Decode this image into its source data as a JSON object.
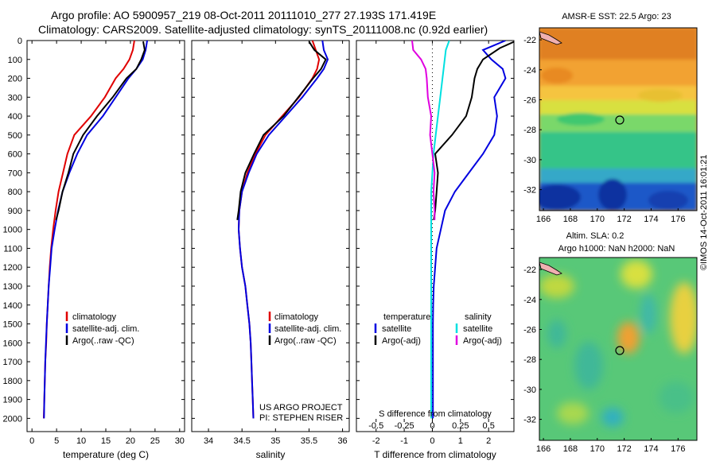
{
  "header": {
    "line1": "Argo profile: AO 5900957_219 08-Oct-2011 20111010_277 27.193S 171.419E",
    "line2": "Climatology: CARS2009. Satellite-adjusted climatology: synTS_20111008.nc (0.92d earlier)"
  },
  "depth_ticks": [
    "0",
    "100",
    "200",
    "300",
    "400",
    "500",
    "600",
    "700",
    "800",
    "900",
    "1000",
    "1100",
    "1200",
    "1300",
    "1400",
    "1500",
    "1600",
    "1700",
    "1800",
    "1900",
    "2000"
  ],
  "panels": {
    "temperature": {
      "xlabel": "temperature (deg C)",
      "xticks": [
        "0",
        "5",
        "10",
        "15",
        "20",
        "25",
        "30"
      ],
      "legend": [
        "climatology",
        "satellite-adj. clim.",
        "Argo(..raw -QC)"
      ]
    },
    "salinity": {
      "xlabel": "salinity",
      "xticks": [
        "34",
        "34.5",
        "35",
        "35.5",
        "36"
      ],
      "legend": [
        "climatology",
        "satellite-adj. clim.",
        "Argo(..raw -QC)"
      ],
      "credit1": "US ARGO PROJECT",
      "credit2": "PI: STEPHEN RISER"
    },
    "difference": {
      "xlabel": "T difference from climatology",
      "top_label": "S difference from climatology",
      "xticks_t": [
        "-2",
        "-1",
        "0",
        "1",
        "2"
      ],
      "xticks_s": [
        "-0.5",
        "-0.25",
        "0",
        "0.25",
        "0.5"
      ],
      "legend_t_title": "temperature",
      "legend_s_title": "salinity",
      "legend_t": [
        "satellite",
        "Argo(-adj)"
      ],
      "legend_s": [
        "satellite",
        "Argo(-adj)"
      ]
    }
  },
  "maps": {
    "sst_title": "AMSR-E SST: 22.5  Argo: 23",
    "sla_title1": "Altim. SLA: 0.2",
    "sla_title2": "Argo h1000: NaN h2000: NaN",
    "lon_ticks": [
      "166",
      "168",
      "170",
      "172",
      "174",
      "176"
    ],
    "lat_ticks": [
      "-22",
      "-24",
      "-26",
      "-28",
      "-30",
      "-32"
    ]
  },
  "footer": "©IMOS 14-Oct-2011 16:01:21",
  "colors": {
    "climatology": "#e00000",
    "satellite": "#0000e0",
    "argo": "#000000",
    "cyan": "#00e0e0",
    "magenta": "#e000e0"
  },
  "chart_data": [
    {
      "type": "line",
      "xlabel": "temperature (deg C)",
      "ylabel": "depth",
      "xlim": [
        -1,
        31
      ],
      "ylim": [
        2070,
        0
      ],
      "y_reversed": true,
      "series": [
        {
          "name": "climatology",
          "color": "#e00000",
          "x": [
            20.8,
            20.5,
            19.8,
            18.6,
            17.0,
            14.8,
            12.0,
            8.6,
            7.2,
            6.3,
            5.4,
            4.8,
            4.3,
            3.9,
            3.6,
            3.4,
            3.2,
            3.0,
            2.9,
            2.7,
            2.6,
            2.5,
            2.4
          ],
          "y": [
            0,
            50,
            100,
            150,
            200,
            300,
            400,
            500,
            600,
            700,
            800,
            900,
            1000,
            1100,
            1200,
            1300,
            1400,
            1500,
            1600,
            1700,
            1800,
            1900,
            2000
          ]
        },
        {
          "name": "satellite-adj. clim.",
          "color": "#0000e0",
          "x": [
            23.4,
            23.1,
            22.5,
            21.2,
            19.6,
            17.0,
            14.4,
            11.2,
            9.2,
            7.6,
            6.2,
            5.3,
            4.6,
            4.0,
            3.7,
            3.4,
            3.2,
            3.0,
            2.85,
            2.7,
            2.6,
            2.5,
            2.45
          ],
          "y": [
            0,
            50,
            100,
            150,
            200,
            300,
            400,
            500,
            600,
            700,
            800,
            900,
            1000,
            1100,
            1200,
            1300,
            1400,
            1500,
            1600,
            1700,
            1800,
            1900,
            2000
          ]
        },
        {
          "name": "Argo(..raw -QC)",
          "color": "#000000",
          "x": [
            22.6,
            22.9,
            22.2,
            21.2,
            19.2,
            16.4,
            13.2,
            10.4,
            8.4,
            7.4,
            6.2,
            5.4,
            4.9
          ],
          "y": [
            5,
            50,
            100,
            150,
            200,
            300,
            400,
            500,
            600,
            700,
            800,
            900,
            950
          ]
        }
      ]
    },
    {
      "type": "line",
      "xlabel": "salinity",
      "ylabel": "depth",
      "xlim": [
        33.75,
        36.1
      ],
      "ylim": [
        2070,
        0
      ],
      "y_reversed": true,
      "series": [
        {
          "name": "climatology",
          "color": "#e00000",
          "x": [
            35.55,
            35.6,
            35.65,
            35.62,
            35.55,
            35.35,
            35.1,
            34.85,
            34.7,
            34.58,
            34.5,
            34.46,
            34.45,
            34.47,
            34.5,
            34.55,
            34.58,
            34.61,
            34.63,
            34.64,
            34.65,
            34.66,
            34.67
          ],
          "y": [
            0,
            50,
            100,
            150,
            200,
            300,
            400,
            500,
            600,
            700,
            800,
            900,
            1000,
            1100,
            1200,
            1300,
            1400,
            1500,
            1600,
            1700,
            1800,
            1900,
            2000
          ]
        },
        {
          "name": "satellite-adj. clim.",
          "color": "#0000e0",
          "x": [
            35.7,
            35.72,
            35.78,
            35.72,
            35.62,
            35.4,
            35.15,
            34.9,
            34.72,
            34.6,
            34.5,
            34.46,
            34.45,
            34.47,
            34.5,
            34.55,
            34.58,
            34.61,
            34.63,
            34.64,
            34.65,
            34.66,
            34.67
          ],
          "y": [
            0,
            50,
            100,
            150,
            200,
            300,
            400,
            500,
            600,
            700,
            800,
            900,
            1000,
            1100,
            1200,
            1300,
            1400,
            1500,
            1600,
            1700,
            1800,
            1900,
            2000
          ]
        },
        {
          "name": "Argo(..raw -QC)",
          "color": "#000000",
          "x": [
            35.5,
            35.58,
            35.75,
            35.68,
            35.56,
            35.34,
            35.12,
            34.82,
            34.68,
            34.55,
            34.48,
            34.45,
            34.43
          ],
          "y": [
            5,
            50,
            100,
            150,
            200,
            300,
            400,
            500,
            600,
            700,
            800,
            900,
            950
          ]
        }
      ]
    },
    {
      "type": "line",
      "xlabel": "T difference from climatology",
      "top_label": "S difference from climatology",
      "ylabel": "depth",
      "xlim_T": [
        -2.7,
        2.9
      ],
      "xlim_S": [
        -0.675,
        0.725
      ],
      "ylim": [
        2070,
        0
      ],
      "y_reversed": true,
      "series": [
        {
          "name": "temperature satellite",
          "color": "#0000e0",
          "x": [
            2.6,
            1.8,
            2.1,
            2.5,
            2.6,
            2.2,
            2.3,
            2.2,
            1.8,
            1.3,
            0.8,
            0.45,
            0.3,
            0.15,
            0.1,
            0.05,
            0.03,
            0.02,
            0.02,
            0.02,
            0.02
          ],
          "y": [
            0,
            50,
            100,
            150,
            200,
            300,
            400,
            500,
            600,
            700,
            800,
            900,
            1000,
            1100,
            1200,
            1300,
            1400,
            1500,
            1600,
            1800,
            2000
          ]
        },
        {
          "name": "temperature Argo(-adj)",
          "color": "#000000",
          "x": [
            3.0,
            2.4,
            1.8,
            1.6,
            1.5,
            1.4,
            1.2,
            0.7,
            0.1,
            0.2,
            0.15,
            0.1,
            0.05
          ],
          "y": [
            0,
            40,
            100,
            150,
            200,
            300,
            400,
            500,
            600,
            700,
            800,
            900,
            950
          ]
        },
        {
          "name": "salinity satellite",
          "color": "#00e0e0",
          "x": [
            0.15,
            0.12,
            0.11,
            0.1,
            0.09,
            0.07,
            0.05,
            0.03,
            0.01,
            0.0,
            -0.01,
            -0.01,
            -0.01,
            -0.01,
            -0.01,
            -0.01,
            -0.01,
            -0.01,
            -0.01,
            -0.01,
            -0.01
          ],
          "y": [
            0,
            50,
            100,
            150,
            200,
            300,
            400,
            500,
            600,
            700,
            800,
            900,
            1000,
            1100,
            1200,
            1300,
            1400,
            1500,
            1600,
            1800,
            2000
          ]
        },
        {
          "name": "salinity Argo(-adj)",
          "color": "#e000e0",
          "x": [
            -0.18,
            -0.17,
            -0.1,
            -0.06,
            -0.05,
            -0.04,
            -0.01,
            -0.02,
            0.0,
            0.02,
            0.01,
            0.02,
            0.02
          ],
          "y": [
            0,
            50,
            100,
            150,
            200,
            300,
            400,
            500,
            600,
            700,
            800,
            900,
            950
          ]
        }
      ]
    }
  ]
}
